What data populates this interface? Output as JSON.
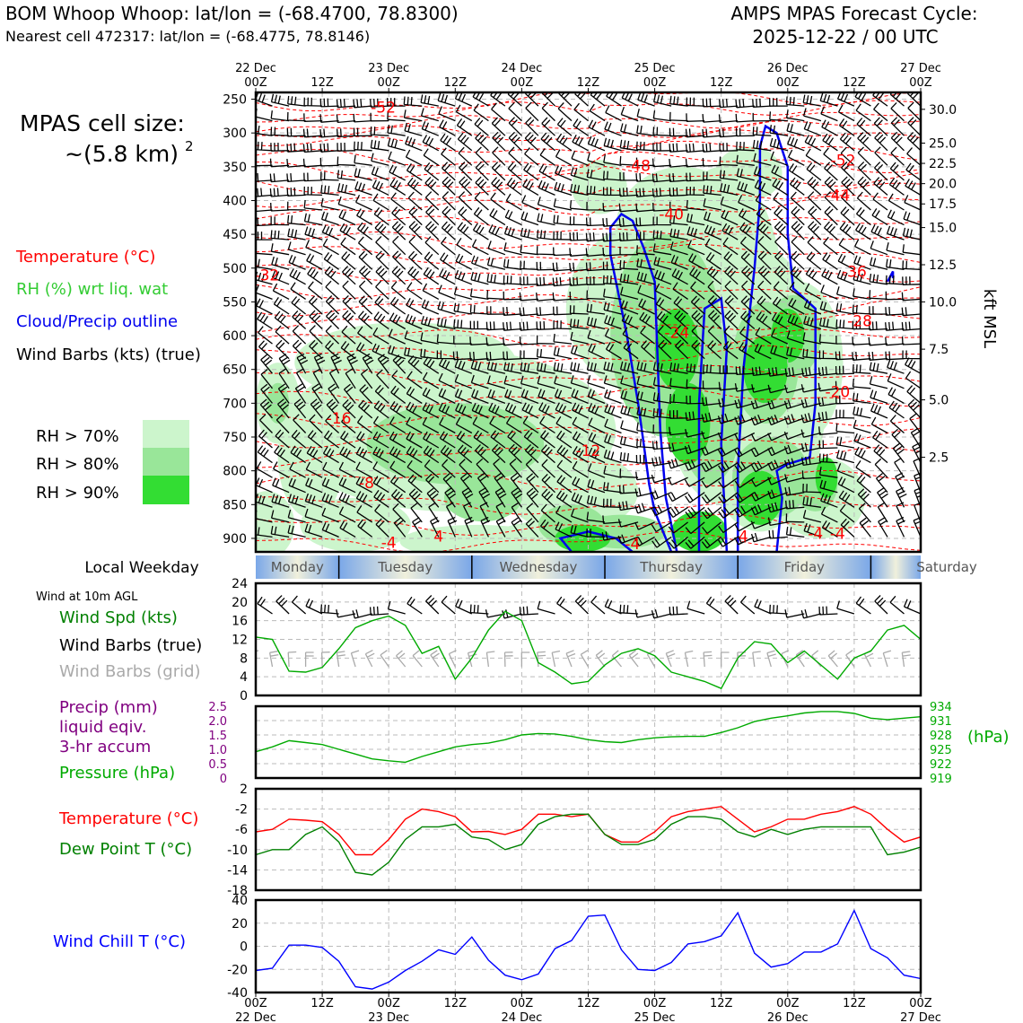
{
  "header": {
    "title_left": "BOM Whoop Whoop: lat/lon = (-68.4700, 78.8300)",
    "subtitle_left": "Nearest cell 472317: lat/lon = (-68.4775, 78.8146)",
    "title_right_1": "AMPS MPAS Forecast Cycle:",
    "title_right_2": "2025-12-22 / 00 UTC"
  },
  "cell_size": {
    "label": "MPAS cell size:",
    "value": "~(5.8 km)",
    "exponent": "2"
  },
  "legend_main": {
    "temperature": "Temperature (°C)",
    "rh": "RH (%) wrt liq. wat",
    "cloud": "Cloud/Precip outline",
    "wind": "Wind Barbs (kts) (true)",
    "rh70": "RH > 70%",
    "rh80": "RH > 80%",
    "rh90": "RH > 90%"
  },
  "colors": {
    "temperature": "#ff0000",
    "rh_text": "#33cc33",
    "cloud": "#0000ee",
    "rh70": "#ccf5cc",
    "rh80": "#99e699",
    "rh90": "#33dd33",
    "pressure": "#00aa00",
    "precip": "#800080",
    "dewpoint": "#008000",
    "windchill": "#0000ff",
    "gridbarb": "#aaaaaa"
  },
  "time_axis": {
    "top_dates": [
      "22 Dec",
      "",
      "23 Dec",
      "",
      "24 Dec",
      "",
      "25 Dec",
      "",
      "26 Dec",
      "",
      "27 Dec"
    ],
    "hours": [
      "00Z",
      "12Z",
      "00Z",
      "12Z",
      "00Z",
      "12Z",
      "00Z",
      "12Z",
      "00Z",
      "12Z",
      "00Z"
    ]
  },
  "weekday": {
    "label": "Local Weekday",
    "days": [
      "Monday",
      "Tuesday",
      "Wednesday",
      "Thursday",
      "Friday",
      "Saturday"
    ]
  },
  "panel_wind": {
    "subtitle": "Wind at 10m AGL",
    "label_speed": "Wind Spd (kts)",
    "label_barbs_true": "Wind Barbs (true)",
    "label_barbs_grid": "Wind Barbs (grid)"
  },
  "panel_precip": {
    "label_1": "Precip (mm)",
    "label_2": "liquid eqiv.",
    "label_3": "3-hr accum",
    "label_pressure": "Pressure (hPa)",
    "unit_right": "(hPa)"
  },
  "panel_temp": {
    "label_temp": "Temperature (°C)",
    "label_dew": "Dew Point T (°C)"
  },
  "panel_chill": {
    "label": "Wind Chill T (°C)"
  },
  "chart_data": [
    {
      "type": "heatmap",
      "name": "vertical cross section",
      "x_range_hours": [
        0,
        120
      ],
      "y_pressure_ticks": [
        "250",
        "300",
        "350",
        "400",
        "450",
        "500",
        "550",
        "600",
        "650",
        "700",
        "750",
        "800",
        "850",
        "900"
      ],
      "y_pressure_range_hpa": [
        240,
        920
      ],
      "y_right_kft_labels": [
        "30.0",
        "25.0",
        "22.5",
        "20.0",
        "17.5",
        "15.0",
        "12.5",
        "10.0",
        "7.5",
        "5.0",
        "2.5"
      ],
      "y_right_kft_pressures": [
        265,
        315,
        345,
        375,
        405,
        440,
        495,
        550,
        620,
        695,
        780
      ],
      "y_right_title": "kft MSL",
      "temperature_contour_labels": [
        {
          "text": "-52",
          "hour": 23,
          "p": 262
        },
        {
          "text": "-48",
          "hour": 69,
          "p": 348
        },
        {
          "text": "-52",
          "hour": 106,
          "p": 340
        },
        {
          "text": "-44",
          "hour": 105,
          "p": 392
        },
        {
          "text": "-40",
          "hour": 75,
          "p": 420
        },
        {
          "text": "-32",
          "hour": 2,
          "p": 510
        },
        {
          "text": "-36",
          "hour": 108,
          "p": 505
        },
        {
          "text": "-28",
          "hour": 109,
          "p": 578
        },
        {
          "text": "-24",
          "hour": 76,
          "p": 595
        },
        {
          "text": "-20",
          "hour": 105,
          "p": 683
        },
        {
          "text": "-16",
          "hour": 15,
          "p": 722
        },
        {
          "text": "-12",
          "hour": 60,
          "p": 770
        },
        {
          "text": "-8",
          "hour": 20,
          "p": 818
        },
        {
          "text": "-4",
          "hour": 24,
          "p": 906
        },
        {
          "text": "-4",
          "hour": 68,
          "p": 908
        },
        {
          "text": "-4",
          "hour": 101,
          "p": 893
        },
        {
          "text": "-4",
          "hour": 105,
          "p": 893
        },
        {
          "text": "4",
          "hour": 33,
          "p": 897
        },
        {
          "text": "4",
          "hour": 88,
          "p": 897
        }
      ]
    },
    {
      "type": "line",
      "name": "10m wind speed",
      "ylabel": "Wind Spd (kts)",
      "ylim": [
        0,
        24
      ],
      "yticks": [
        "0",
        "4",
        "8",
        "12",
        "16",
        "20",
        "24"
      ],
      "x_hours": [
        0,
        3,
        6,
        9,
        12,
        15,
        18,
        21,
        24,
        27,
        30,
        33,
        36,
        39,
        42,
        45,
        48,
        51,
        54,
        57,
        60,
        63,
        66,
        69,
        72,
        75,
        78,
        81,
        84,
        87,
        90,
        93,
        96,
        99,
        102,
        105,
        108,
        111,
        114,
        117,
        120
      ],
      "values": [
        12.5,
        12,
        5.2,
        5,
        6,
        10,
        14.5,
        16,
        17,
        15,
        9,
        10.5,
        3.5,
        8,
        14,
        18,
        16,
        7,
        5,
        2.5,
        3,
        6.5,
        9,
        10,
        8.5,
        5,
        4,
        3,
        1.5,
        8,
        11.5,
        11,
        7,
        9.5,
        6.5,
        3.5,
        8,
        9.5,
        14,
        15,
        12
      ]
    },
    {
      "type": "line",
      "name": "surface pressure",
      "ylabel": "Pressure (hPa)",
      "ylim": [
        919,
        934
      ],
      "yticks": [
        "934",
        "931",
        "928",
        "925",
        "922",
        "919"
      ],
      "precip_ylabel": "Precip (mm)",
      "precip_ylim": [
        0,
        2.5
      ],
      "precip_yticks": [
        "2.5",
        "2.0",
        "1.5",
        "1.0",
        "0.5",
        "0"
      ],
      "x_hours": [
        0,
        3,
        6,
        9,
        12,
        15,
        18,
        21,
        24,
        27,
        30,
        33,
        36,
        39,
        42,
        45,
        48,
        51,
        54,
        57,
        60,
        63,
        66,
        69,
        72,
        75,
        78,
        81,
        84,
        87,
        90,
        93,
        96,
        99,
        102,
        105,
        108,
        111,
        114,
        117,
        120
      ],
      "values": [
        924.5,
        925.5,
        926.8,
        926.4,
        926,
        925,
        924,
        923,
        922.6,
        922.3,
        923.5,
        924.5,
        925.5,
        926,
        926.3,
        927,
        928,
        928.3,
        928.2,
        927.7,
        927,
        926.6,
        926.4,
        927,
        927.4,
        927.6,
        927.7,
        927.7,
        928.5,
        929.5,
        930.8,
        931.5,
        932,
        932.6,
        932.9,
        932.9,
        932.5,
        931.5,
        931.2,
        931.5,
        931.8
      ]
    },
    {
      "type": "line",
      "name": "temperature and dew point",
      "ylim": [
        -18,
        2
      ],
      "yticks": [
        "2",
        "-2",
        "-6",
        "-10",
        "-14",
        "-18"
      ],
      "x_hours": [
        0,
        3,
        6,
        9,
        12,
        15,
        18,
        21,
        24,
        27,
        30,
        33,
        36,
        39,
        42,
        45,
        48,
        51,
        54,
        57,
        60,
        63,
        66,
        69,
        72,
        75,
        78,
        81,
        84,
        87,
        90,
        93,
        96,
        99,
        102,
        105,
        108,
        111,
        114,
        117,
        120
      ],
      "series": [
        {
          "name": "Temperature (°C)",
          "values": [
            -6.5,
            -6,
            -4,
            -4.2,
            -4.5,
            -7,
            -11,
            -11,
            -8,
            -4,
            -2,
            -2.5,
            -3.5,
            -6.5,
            -6.4,
            -7,
            -6,
            -3,
            -3,
            -3.5,
            -3,
            -7,
            -8.5,
            -8.5,
            -6.5,
            -3.5,
            -2.5,
            -2,
            -1.5,
            -4,
            -6.5,
            -5.5,
            -4,
            -4,
            -3,
            -2.5,
            -1.5,
            -3,
            -6,
            -8.5,
            -7.5
          ]
        },
        {
          "name": "Dew Point T (°C)",
          "values": [
            -11,
            -10,
            -10,
            -7,
            -5.5,
            -8.5,
            -14.5,
            -15,
            -12.5,
            -8,
            -5.5,
            -5.5,
            -5,
            -7.5,
            -8,
            -10,
            -9,
            -5,
            -3.5,
            -3,
            -3,
            -7,
            -9,
            -9,
            -8,
            -5,
            -3.5,
            -3.5,
            -4,
            -6.5,
            -7.5,
            -6,
            -7,
            -6,
            -5.5,
            -5.5,
            -5.5,
            -5.5,
            -11,
            -10.5,
            -9.5
          ]
        }
      ]
    },
    {
      "type": "line",
      "name": "wind chill",
      "ylabel": "Wind Chill T (°C)",
      "ylim": [
        -40,
        40
      ],
      "yticks": [
        "40",
        "20",
        "0",
        "-20",
        "-40"
      ],
      "x_hours": [
        0,
        3,
        6,
        9,
        12,
        15,
        18,
        21,
        24,
        27,
        30,
        33,
        36,
        39,
        42,
        45,
        48,
        51,
        54,
        57,
        60,
        63,
        66,
        69,
        72,
        75,
        78,
        81,
        84,
        87,
        90,
        93,
        96,
        99,
        102,
        105,
        108,
        111,
        114,
        117,
        120
      ],
      "values": [
        -21,
        -19,
        1,
        1,
        -1,
        -13,
        -35,
        -37,
        -31,
        -21,
        -13,
        -3,
        -7,
        8,
        -12,
        -25,
        -29,
        -24,
        -2,
        5,
        26,
        27,
        -3,
        -20,
        -21,
        -14,
        2,
        4,
        9,
        29,
        -6,
        -18,
        -15,
        -5,
        -5,
        2,
        31,
        -2,
        -10,
        -25,
        -28
      ]
    }
  ]
}
